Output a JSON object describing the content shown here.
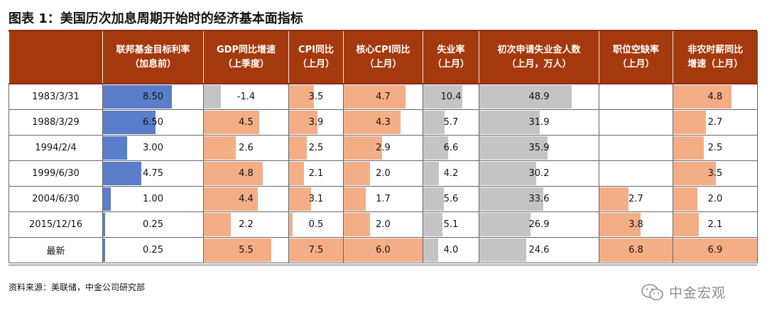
{
  "title": "图表 1：美国历次加息周期开始时的经济基本面指标",
  "columns": [
    "",
    "联邦基金目标利率\n（加息前）",
    "GDP同比增速\n（上季度）",
    "CPI同比\n（上月）",
    "核心CPI同比\n（上月）",
    "失业率\n（上月）",
    "初次申请失业金人数\n（上月，万人）",
    "职位空缺率\n（上月）",
    "非农时薪同比\n增速（上月）"
  ],
  "rows": [
    {
      "label": "1983/3/31",
      "values": [
        "8.50",
        "-1.4",
        "3.5",
        "4.7",
        "10.4",
        "48.9",
        "",
        "4.8"
      ]
    },
    {
      "label": "1988/3/29",
      "values": [
        "6.50",
        "4.5",
        "3.9",
        "4.3",
        "5.7",
        "31.9",
        "",
        "2.7"
      ]
    },
    {
      "label": "1994/2/4",
      "values": [
        "3.00",
        "2.6",
        "2.5",
        "2.9",
        "6.6",
        "35.9",
        "",
        "2.5"
      ]
    },
    {
      "label": "1999/6/30",
      "values": [
        "4.75",
        "4.8",
        "2.1",
        "2.0",
        "4.2",
        "30.2",
        "",
        "3.5"
      ]
    },
    {
      "label": "2004/6/30",
      "values": [
        "1.00",
        "4.4",
        "3.1",
        "1.7",
        "5.6",
        "33.6",
        "2.7",
        "2.0"
      ]
    },
    {
      "label": "2015/12/16",
      "values": [
        "0.25",
        "2.2",
        "0.5",
        "2.0",
        "5.1",
        "26.9",
        "3.8",
        "2.1"
      ]
    },
    {
      "label": "最新",
      "values": [
        "0.25",
        "5.5",
        "7.5",
        "6.0",
        "4.0",
        "24.6",
        "6.8",
        "6.9"
      ]
    }
  ],
  "bar_colors": [
    "blue",
    "orange",
    "orange",
    "orange",
    "gray",
    "gray",
    "orange",
    "orange"
  ],
  "bar_max": [
    12.3,
    6.9,
    7.5,
    6.0,
    14.8,
    63.0,
    6.8,
    6.9
  ],
  "source": "资料来源：美联储，中金公司研究部",
  "watermark": "中金宏观"
}
